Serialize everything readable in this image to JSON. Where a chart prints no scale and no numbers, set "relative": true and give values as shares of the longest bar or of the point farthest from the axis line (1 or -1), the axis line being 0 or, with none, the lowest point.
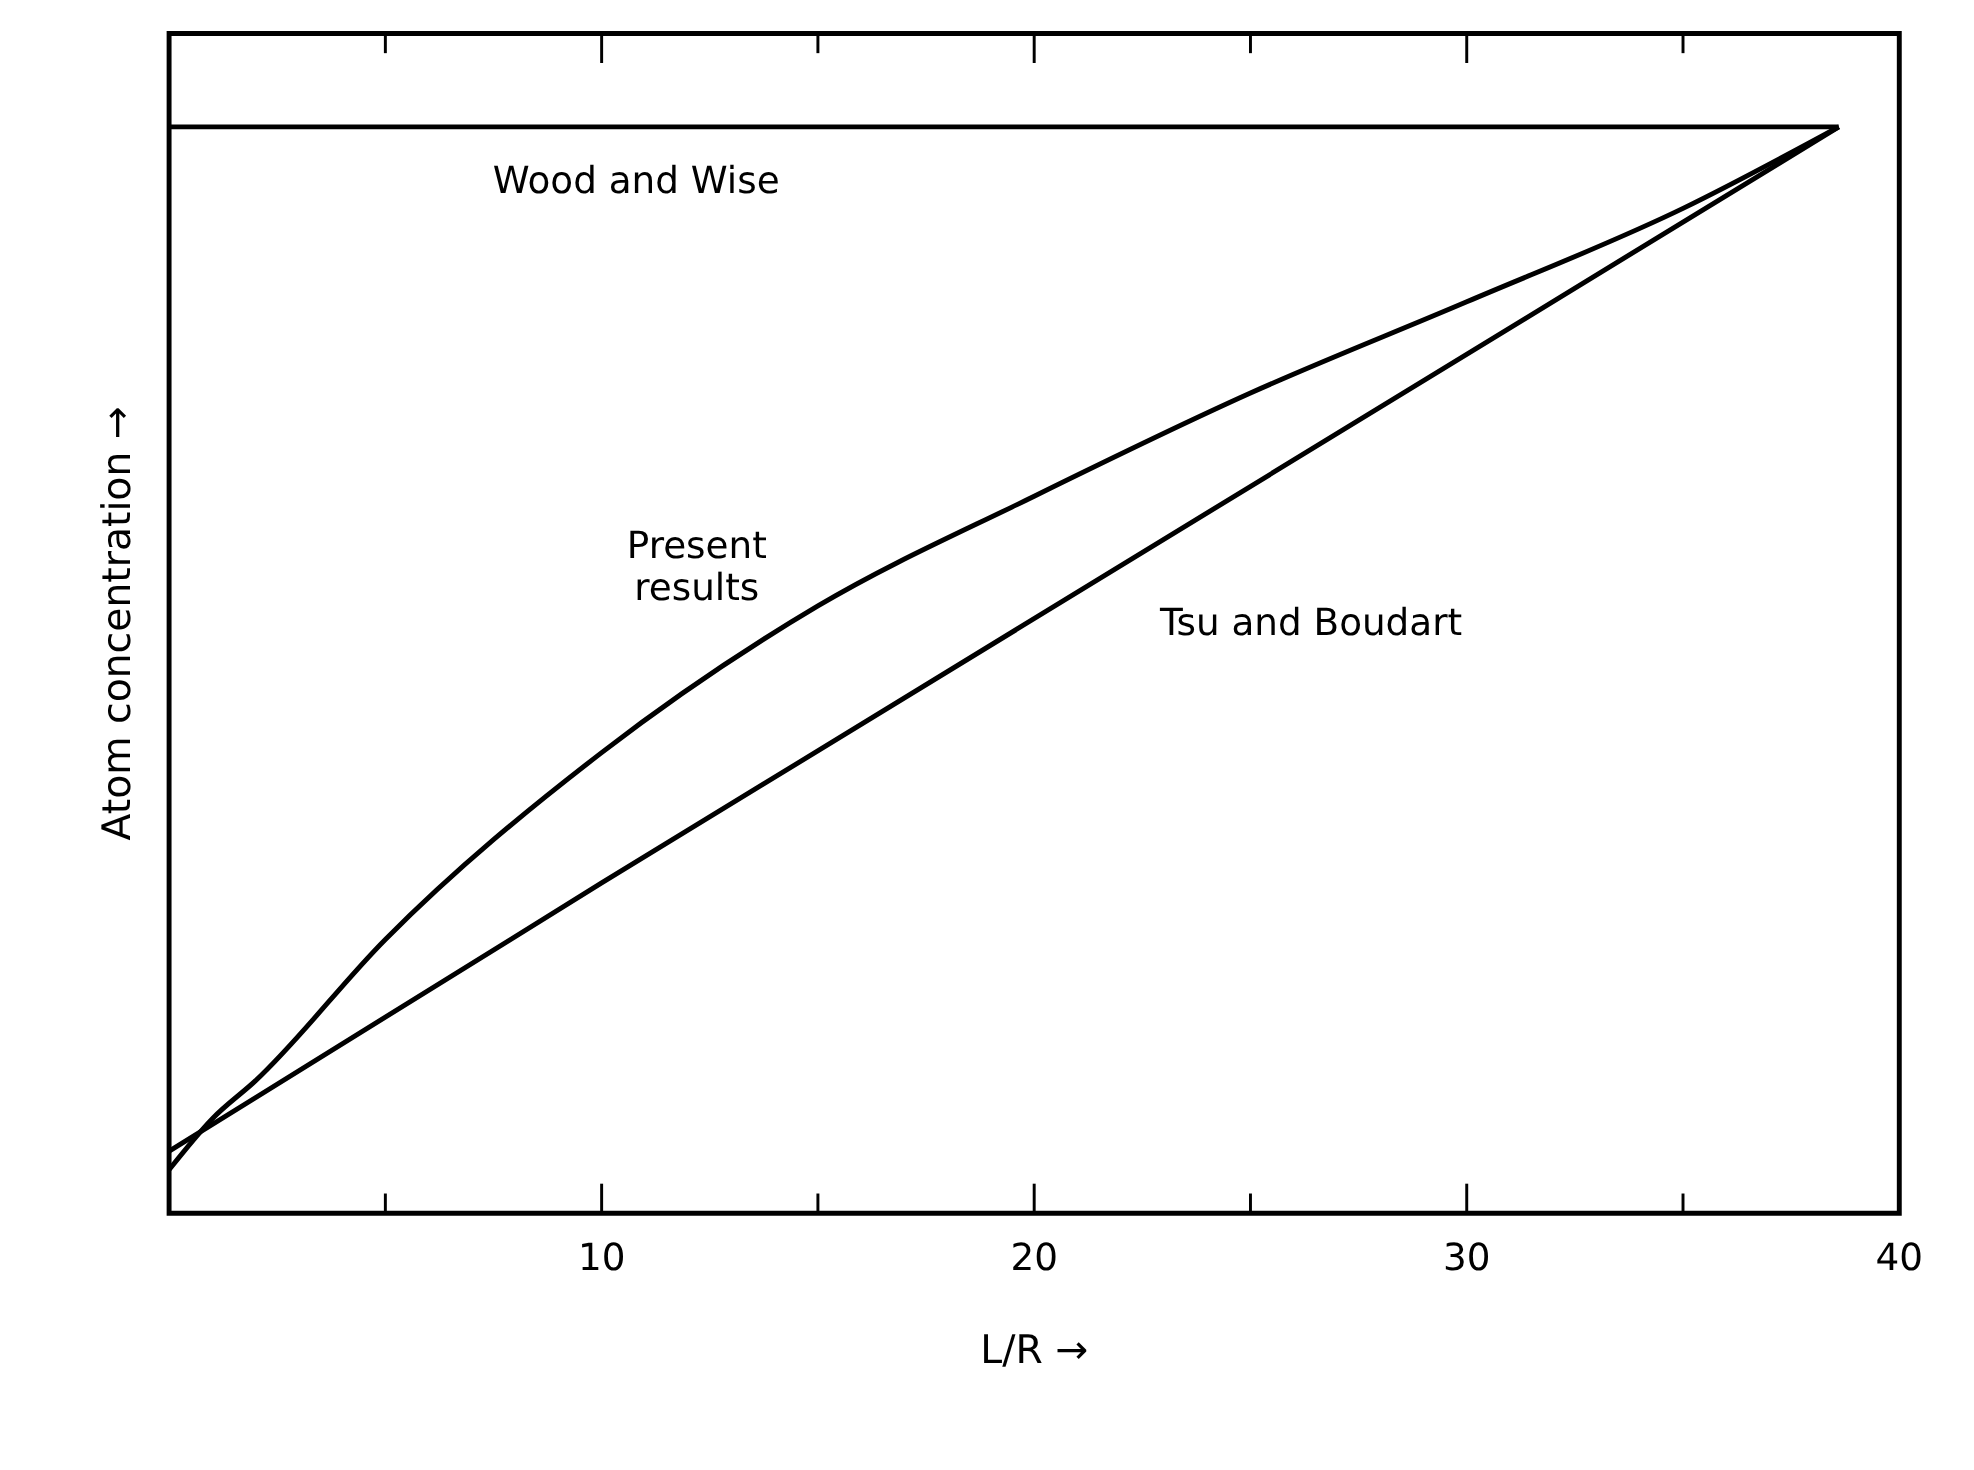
{
  "chart_data": {
    "type": "line",
    "relative": true,
    "xlabel": "L/R →",
    "ylabel": "Atom concentration →",
    "xlim": [
      0,
      40
    ],
    "xticks": [
      {
        "value": 5,
        "label": null
      },
      10,
      {
        "value": 15,
        "label": null
      },
      20,
      {
        "value": 25,
        "label": null
      },
      30,
      {
        "value": 35,
        "label": null
      },
      40
    ],
    "marker": "none",
    "line_style": "solid",
    "series": [
      {
        "name": "Wood and Wise",
        "color": "#000000",
        "x": [
          0,
          38.6
        ],
        "values": [
          1,
          1
        ]
      },
      {
        "name": "Present results",
        "color": "#000000",
        "x": [
          0,
          1,
          2,
          5,
          10,
          15,
          20,
          25,
          30,
          35,
          38.6
        ],
        "values": [
          0.04,
          0.087,
          0.122,
          0.252,
          0.424,
          0.559,
          0.66,
          0.755,
          0.839,
          0.925,
          1
        ]
      },
      {
        "name": "Tsu and Boudart",
        "color": "#000000",
        "x": [
          0,
          10,
          38.6
        ],
        "values": [
          0.057,
          0.304,
          1
        ]
      }
    ]
  }
}
